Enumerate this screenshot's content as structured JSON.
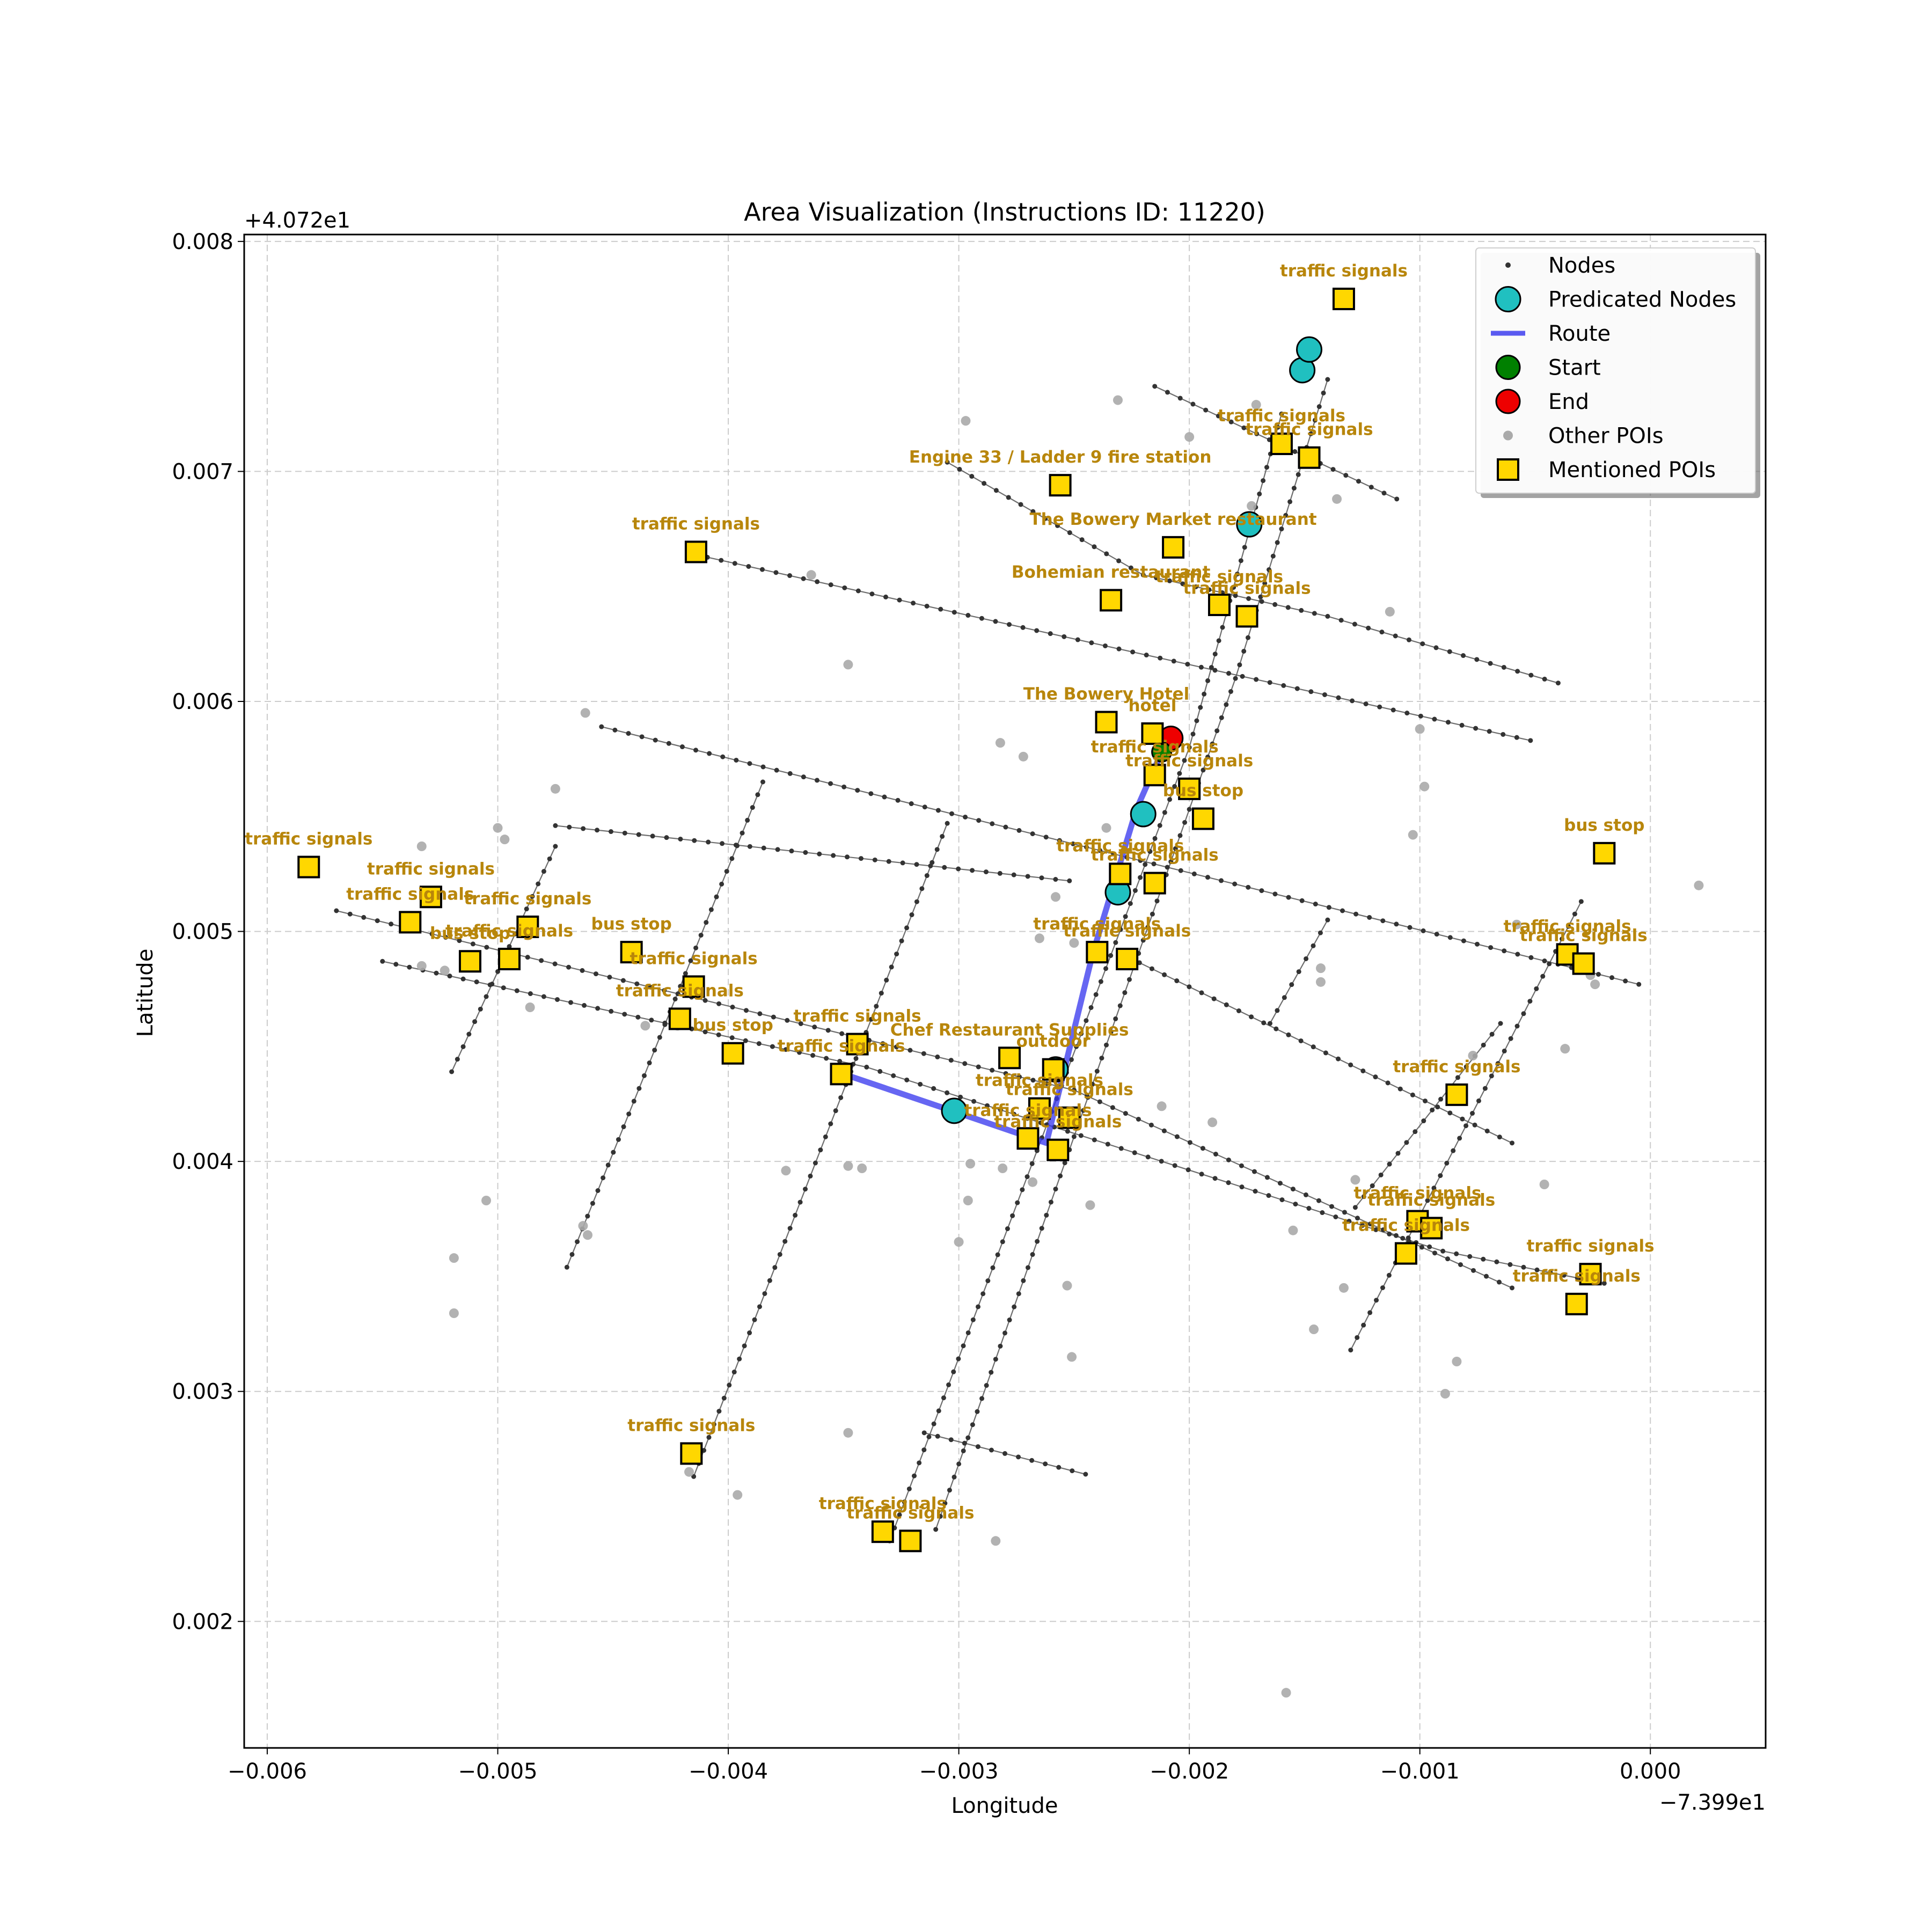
{
  "chart_data": {
    "type": "scatter",
    "title": "Area Visualization (Instructions ID: 11220)",
    "xlabel": "Longitude",
    "ylabel": "Latitude",
    "x_offset_label": "−7.399e1",
    "y_offset_label": "+4.072e1",
    "xlim": [
      -0.0061,
      0.0005
    ],
    "ylim": [
      0.00145,
      0.00803
    ],
    "xticks": [
      -0.006,
      -0.005,
      -0.004,
      -0.003,
      -0.002,
      -0.001,
      0.0
    ],
    "xtick_labels": [
      "−0.006",
      "−0.005",
      "−0.004",
      "−0.003",
      "−0.002",
      "−0.001",
      "0.000"
    ],
    "yticks": [
      0.002,
      0.003,
      0.004,
      0.005,
      0.006,
      0.007,
      0.008
    ],
    "ytick_labels": [
      "0.002",
      "0.003",
      "0.004",
      "0.005",
      "0.006",
      "0.007",
      "0.008"
    ],
    "grid": true,
    "legend_position": "top-right",
    "legend": [
      {
        "label": "Nodes",
        "kind": "node"
      },
      {
        "label": "Predicated Nodes",
        "kind": "pred"
      },
      {
        "label": "Route",
        "kind": "route"
      },
      {
        "label": "Start",
        "kind": "start"
      },
      {
        "label": "End",
        "kind": "end"
      },
      {
        "label": "Other POIs",
        "kind": "other"
      },
      {
        "label": "Mentioned POIs",
        "kind": "poi"
      }
    ],
    "colors": {
      "node": "#333333",
      "street": "#555555",
      "predicted": "#20c0c0",
      "route": "#3333ee",
      "start": "#008000",
      "end": "#ee0000",
      "other_poi": "#aaaaaa",
      "poi_fill": "#ffd700",
      "poi_label": "#b8860b",
      "grid": "#cccccc"
    },
    "streets": [
      {
        "name": "st1",
        "points": [
          [
            -0.00415,
            0.00664
          ],
          [
            -0.00052,
            0.00583
          ]
        ]
      },
      {
        "name": "st2",
        "points": [
          [
            -0.00455,
            0.00589
          ],
          [
            -5e-05,
            0.00477
          ]
        ]
      },
      {
        "name": "st3",
        "points": [
          [
            -0.0057,
            0.00509
          ],
          [
            -0.0025,
            0.00431
          ],
          [
            -0.0006,
            0.00345
          ]
        ]
      },
      {
        "name": "st4",
        "points": [
          [
            -0.0055,
            0.00487
          ],
          [
            -0.0034,
            0.00441
          ],
          [
            -0.0009,
            0.00361
          ],
          [
            -0.0002,
            0.00347
          ]
        ]
      },
      {
        "name": "st5",
        "points": [
          [
            -0.00305,
            0.00704
          ],
          [
            -0.0022,
            0.00655
          ],
          [
            -0.0014,
            0.00637
          ],
          [
            -0.0004,
            0.00608
          ]
        ]
      },
      {
        "name": "st6",
        "points": [
          [
            -0.00215,
            0.00737
          ],
          [
            -0.0011,
            0.00688
          ]
        ]
      },
      {
        "name": "st7",
        "points": [
          [
            -0.00227,
            0.00489
          ],
          [
            -0.0006,
            0.00408
          ]
        ]
      },
      {
        "name": "st8",
        "points": [
          [
            -0.00475,
            0.00546
          ],
          [
            -0.00252,
            0.00522
          ]
        ]
      },
      {
        "name": "st9",
        "points": [
          [
            -0.00315,
            0.00282
          ],
          [
            -0.00245,
            0.00264
          ]
        ]
      },
      {
        "name": "ave1",
        "points": [
          [
            -0.0052,
            0.00439
          ],
          [
            -0.00475,
            0.00537
          ]
        ]
      },
      {
        "name": "ave2",
        "points": [
          [
            -0.0047,
            0.00354
          ],
          [
            -0.00385,
            0.00565
          ]
        ]
      },
      {
        "name": "ave3",
        "points": [
          [
            -0.00415,
            0.00263
          ],
          [
            -0.00305,
            0.00547
          ]
        ]
      },
      {
        "name": "ave4",
        "points": [
          [
            -0.0033,
            0.00235
          ],
          [
            -0.002,
            0.0058
          ],
          [
            -0.0016,
            0.00725
          ]
        ]
      },
      {
        "name": "ave5",
        "points": [
          [
            -0.0031,
            0.0024
          ],
          [
            -0.0018,
            0.0061
          ],
          [
            -0.0014,
            0.0074
          ]
        ]
      },
      {
        "name": "ave6",
        "points": [
          [
            -0.0013,
            0.00318
          ],
          [
            -0.0003,
            0.00513
          ]
        ]
      },
      {
        "name": "ave7",
        "points": [
          [
            -0.00128,
            0.0038
          ],
          [
            -0.00065,
            0.0046
          ]
        ]
      },
      {
        "name": "ave8",
        "points": [
          [
            -0.00165,
            0.0046
          ],
          [
            -0.0014,
            0.00505
          ]
        ]
      }
    ],
    "route": [
      [
        -0.0035,
        0.00438
      ],
      [
        -0.003,
        0.00421
      ],
      [
        -0.00262,
        0.00408
      ],
      [
        -0.00242,
        0.0049
      ],
      [
        -0.00223,
        0.00553
      ],
      [
        -0.00212,
        0.00578
      ]
    ],
    "predicted_nodes": [
      [
        -0.00302,
        0.00422
      ],
      [
        -0.00258,
        0.0044
      ],
      [
        -0.00231,
        0.00517
      ],
      [
        -0.0022,
        0.00551
      ],
      [
        -0.00174,
        0.00677
      ],
      [
        -0.00151,
        0.00744
      ],
      [
        -0.00148,
        0.00753
      ]
    ],
    "start": [
      -0.00212,
      0.00578
    ],
    "end": [
      -0.00208,
      0.00584
    ],
    "other_pois": [
      [
        -0.00297,
        0.00722
      ],
      [
        -0.00231,
        0.00731
      ],
      [
        -0.002,
        0.00715
      ],
      [
        -0.00171,
        0.00729
      ],
      [
        -0.00173,
        0.00685
      ],
      [
        -0.00136,
        0.00688
      ],
      [
        -0.00364,
        0.00655
      ],
      [
        -0.00348,
        0.00616
      ],
      [
        -0.00462,
        0.00595
      ],
      [
        -0.00475,
        0.00562
      ],
      [
        -0.00533,
        0.00537
      ],
      [
        -0.005,
        0.00545
      ],
      [
        -0.00497,
        0.0054
      ],
      [
        -0.00282,
        0.00582
      ],
      [
        -0.00272,
        0.00576
      ],
      [
        -0.00236,
        0.00545
      ],
      [
        -0.00258,
        0.00515
      ],
      [
        -0.0025,
        0.00495
      ],
      [
        -0.00265,
        0.00497
      ],
      [
        -0.00212,
        0.00424
      ],
      [
        -0.0019,
        0.00417
      ],
      [
        -0.00281,
        0.00397
      ],
      [
        -0.00268,
        0.00391
      ],
      [
        -0.00243,
        0.00381
      ],
      [
        -0.00253,
        0.00346
      ],
      [
        -0.00251,
        0.00315
      ],
      [
        -0.003,
        0.00365
      ],
      [
        -0.00296,
        0.00383
      ],
      [
        -0.00295,
        0.00399
      ],
      [
        -0.00348,
        0.00398
      ],
      [
        -0.00342,
        0.00397
      ],
      [
        -0.00375,
        0.00396
      ],
      [
        -0.00505,
        0.00383
      ],
      [
        -0.00519,
        0.00358
      ],
      [
        -0.00519,
        0.00334
      ],
      [
        -0.00461,
        0.00368
      ],
      [
        -0.00463,
        0.00372
      ],
      [
        -0.00533,
        0.00485
      ],
      [
        -0.00523,
        0.00483
      ],
      [
        -0.00486,
        0.00467
      ],
      [
        -0.00436,
        0.00459
      ],
      [
        -0.00422,
        0.00459
      ],
      [
        -0.00348,
        0.00282
      ],
      [
        -0.00396,
        0.00255
      ],
      [
        -0.00417,
        0.00265
      ],
      [
        -0.00284,
        0.00235
      ],
      [
        -0.00158,
        0.00169
      ],
      [
        -0.00143,
        0.00484
      ],
      [
        -0.00143,
        0.00478
      ],
      [
        -0.00146,
        0.00327
      ],
      [
        -0.00155,
        0.0037
      ],
      [
        -0.00128,
        0.00392
      ],
      [
        -0.00133,
        0.00345
      ],
      [
        -0.00089,
        0.00299
      ],
      [
        -0.00084,
        0.00313
      ],
      [
        -0.00077,
        0.00446
      ],
      [
        -0.00037,
        0.00449
      ],
      [
        -0.00046,
        0.0039
      ],
      [
        -0.00024,
        0.00477
      ],
      [
        -0.00026,
        0.00481
      ],
      [
        0.00021,
        0.0052
      ],
      [
        -0.00098,
        0.00563
      ],
      [
        -0.001,
        0.00588
      ],
      [
        -0.00103,
        0.00542
      ],
      [
        -0.00113,
        0.00639
      ],
      [
        -0.00058,
        0.00503
      ]
    ],
    "mentioned_pois": [
      {
        "label": "traffic signals",
        "x": -0.00133,
        "y": 0.00775
      },
      {
        "label": "traffic signals",
        "x": -0.0016,
        "y": 0.00712
      },
      {
        "label": "traffic signals",
        "x": -0.00148,
        "y": 0.00706
      },
      {
        "label": "Engine 33 / Ladder 9 fire station",
        "x": -0.00256,
        "y": 0.00694
      },
      {
        "label": "The Bowery Market restaurant",
        "x": -0.00207,
        "y": 0.00667
      },
      {
        "label": "traffic signals",
        "x": -0.00414,
        "y": 0.00665
      },
      {
        "label": "Bohemian restaurant",
        "x": -0.00234,
        "y": 0.00644
      },
      {
        "label": "traffic signals",
        "x": -0.00187,
        "y": 0.00642
      },
      {
        "label": "traffic signals",
        "x": -0.00175,
        "y": 0.00637
      },
      {
        "label": "The Bowery Hotel",
        "x": -0.00236,
        "y": 0.00591
      },
      {
        "label": "hotel",
        "x": -0.00216,
        "y": 0.00586
      },
      {
        "label": "traffic signals",
        "x": -0.00215,
        "y": 0.00568
      },
      {
        "label": "traffic signals",
        "x": -0.002,
        "y": 0.00562
      },
      {
        "label": "bus stop",
        "x": -0.00194,
        "y": 0.00549
      },
      {
        "label": "bus stop",
        "x": -0.0002,
        "y": 0.00534
      },
      {
        "label": "traffic signals",
        "x": -0.00582,
        "y": 0.00528
      },
      {
        "label": "traffic signals",
        "x": -0.0023,
        "y": 0.00525
      },
      {
        "label": "traffic signals",
        "x": -0.00215,
        "y": 0.00521
      },
      {
        "label": "traffic signals",
        "x": -0.00529,
        "y": 0.00515
      },
      {
        "label": "traffic signals",
        "x": -0.00538,
        "y": 0.00504
      },
      {
        "label": "traffic signals",
        "x": -0.00487,
        "y": 0.00502
      },
      {
        "label": "traffic signals",
        "x": -0.0024,
        "y": 0.00491
      },
      {
        "label": "traffic signals",
        "x": -0.00227,
        "y": 0.00488
      },
      {
        "label": "bus stop",
        "x": -0.00442,
        "y": 0.00491
      },
      {
        "label": "traffic signals",
        "x": -0.00036,
        "y": 0.0049
      },
      {
        "label": "traffic signals",
        "x": -0.00029,
        "y": 0.00486
      },
      {
        "label": "bus stop",
        "x": -0.00512,
        "y": 0.00487
      },
      {
        "label": "traffic signals",
        "x": -0.00495,
        "y": 0.00488
      },
      {
        "label": "traffic signals",
        "x": -0.00415,
        "y": 0.00476
      },
      {
        "label": "traffic signals",
        "x": -0.00421,
        "y": 0.00462
      },
      {
        "label": "bus stop",
        "x": -0.00398,
        "y": 0.00447
      },
      {
        "label": "traffic signals",
        "x": -0.00344,
        "y": 0.00451
      },
      {
        "label": "Chef Restaurant Supplies",
        "x": -0.00278,
        "y": 0.00445
      },
      {
        "label": "outdoor",
        "x": -0.00259,
        "y": 0.0044
      },
      {
        "label": "traffic signals",
        "x": -0.00351,
        "y": 0.00438
      },
      {
        "label": "traffic signals",
        "x": -0.00084,
        "y": 0.00429
      },
      {
        "label": "traffic signals",
        "x": -0.00265,
        "y": 0.00423
      },
      {
        "label": "traffic signals",
        "x": -0.00252,
        "y": 0.00419
      },
      {
        "label": "traffic signals",
        "x": -0.0027,
        "y": 0.0041
      },
      {
        "label": "traffic signals",
        "x": -0.00257,
        "y": 0.00405
      },
      {
        "label": "traffic signals",
        "x": -0.00101,
        "y": 0.00374
      },
      {
        "label": "traffic signals",
        "x": -0.00095,
        "y": 0.00371
      },
      {
        "label": "traffic signals",
        "x": -0.00106,
        "y": 0.0036
      },
      {
        "label": "traffic signals",
        "x": -0.00026,
        "y": 0.00351
      },
      {
        "label": "traffic signals",
        "x": -0.00032,
        "y": 0.00338
      },
      {
        "label": "traffic signals",
        "x": -0.00416,
        "y": 0.00273
      },
      {
        "label": "traffic signals",
        "x": -0.00333,
        "y": 0.00239
      },
      {
        "label": "traffic signals",
        "x": -0.00321,
        "y": 0.00235
      }
    ]
  }
}
